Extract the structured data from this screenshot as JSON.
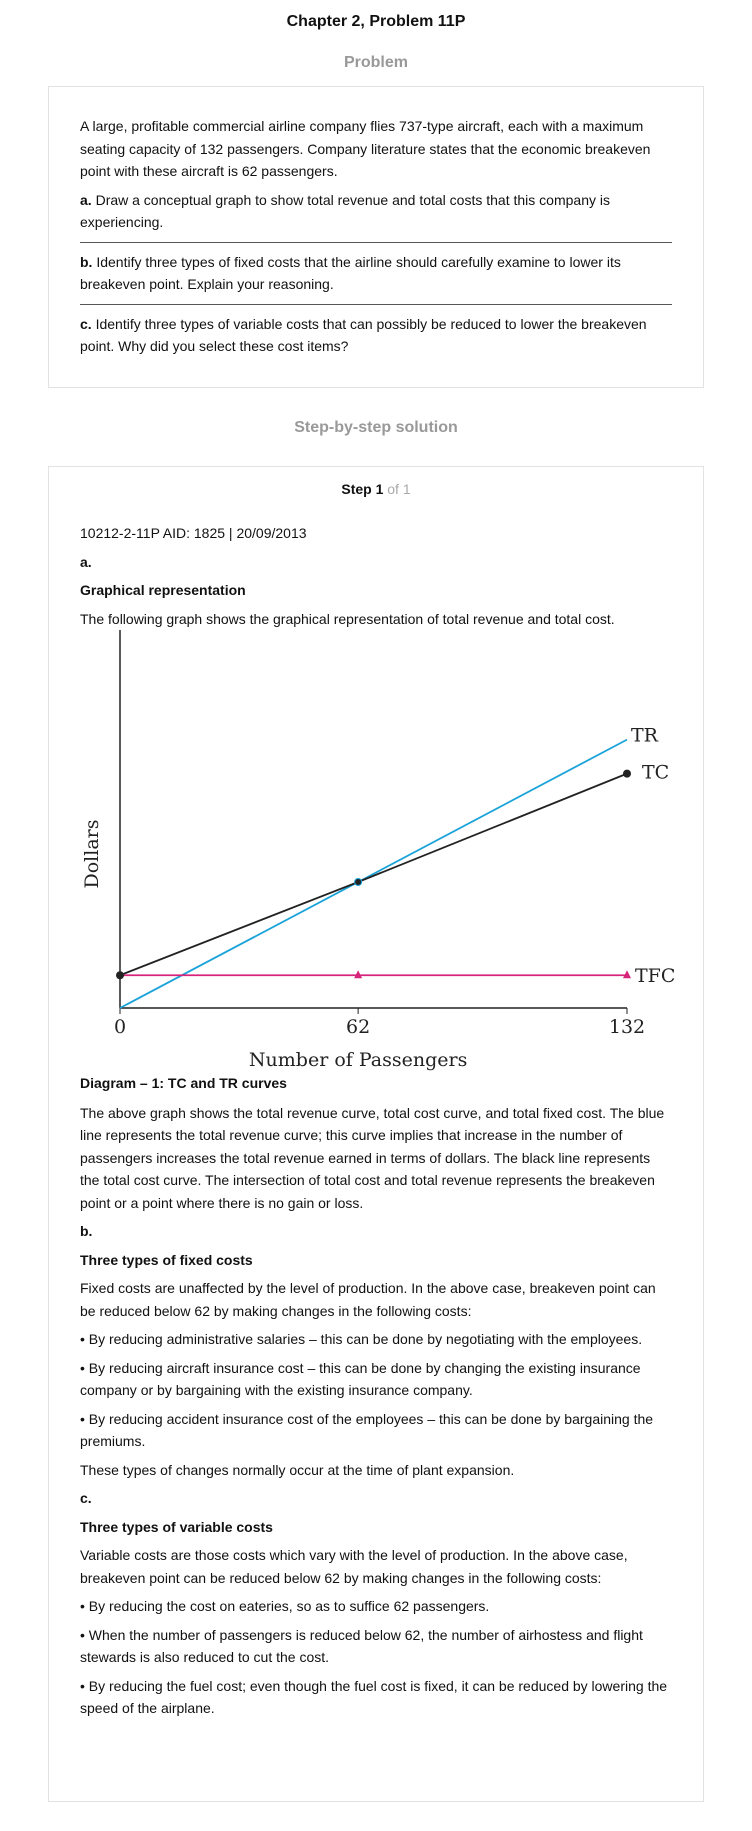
{
  "page": {
    "title": "Chapter 2, Problem 11P"
  },
  "problem": {
    "heading": "Problem",
    "intro": "A large, profitable commercial airline company flies 737-type aircraft, each with a maximum seating capacity of 132 passengers. Company literature states that the economic breakeven point with these aircraft is 62 passengers.",
    "parts": [
      {
        "label": "a.",
        "text": " Draw a conceptual graph to show total revenue and total costs that this company is experiencing."
      },
      {
        "label": "b.",
        "text": " Identify three types of fixed costs that the airline should carefully examine to lower its breakeven point. Explain your reasoning."
      },
      {
        "label": "c.",
        "text": " Identify three types of variable costs that can possibly be reduced to lower the breakeven point. Why did you select these cost items?"
      }
    ]
  },
  "solution": {
    "heading": "Step-by-step solution",
    "step_label": "Step 1",
    "step_of": " of 1",
    "aid_line": "10212-2-11P AID: 1825 | 20/09/2013",
    "a_label": "a.",
    "a_heading": "Graphical representation",
    "a_text": "The following graph shows the graphical representation of total revenue and total cost.",
    "diagram_caption": "Diagram – 1: TC and TR curves",
    "a_explanation": "The above graph shows the total revenue curve, total cost curve, and total fixed cost. The blue line represents the total revenue curve; this curve implies that increase in the number of passengers increases the total revenue earned in terms of dollars. The black line represents the total cost curve. The intersection of total cost and total revenue represents the breakeven point or a point where there is no gain or loss.",
    "b_label": "b.",
    "b_heading": "Three types of fixed costs",
    "b_intro": "Fixed costs are unaffected by the level of production. In the above case, breakeven point can be reduced below 62 by making changes in the following costs:",
    "b_bullets": [
      "• By reducing administrative salaries – this can be done by negotiating with the employees.",
      "• By reducing aircraft insurance cost – this can be done by changing the existing insurance company or by bargaining with the existing insurance company.",
      "• By reducing accident insurance cost of the employees – this can be done by bargaining the premiums."
    ],
    "b_outro": "These types of changes normally occur at the time of plant expansion.",
    "c_label": "c.",
    "c_heading": "Three types of variable costs",
    "c_intro": "Variable costs are those costs which vary with the level of production. In the above case, breakeven point can be reduced below 62 by making changes in the following costs:",
    "c_bullets": [
      "• By reducing the cost on eateries, so as to suffice 62 passengers.",
      "• When the number of passengers is reduced below 62, the number of airhostess and flight stewards is also reduced to cut the cost.",
      "• By reducing the fuel cost; even though the fuel cost is fixed, it can be reduced by lowering the speed of the airplane."
    ]
  },
  "chart_data": {
    "type": "line",
    "xlabel": "Number of Passengers",
    "ylabel": "Dollars",
    "x_ticks": [
      "0",
      "62",
      "132"
    ],
    "x": [
      0,
      62,
      132
    ],
    "series": [
      {
        "name": "TR",
        "values": [
          0,
          1,
          2.13
        ],
        "color": "#1aa3d9"
      },
      {
        "name": "TC",
        "values": [
          0.26,
          1,
          1.86
        ],
        "color": "#222222"
      },
      {
        "name": "TFC",
        "values": [
          0.26,
          0.26,
          0.26
        ],
        "color": "#d6247a"
      }
    ]
  }
}
